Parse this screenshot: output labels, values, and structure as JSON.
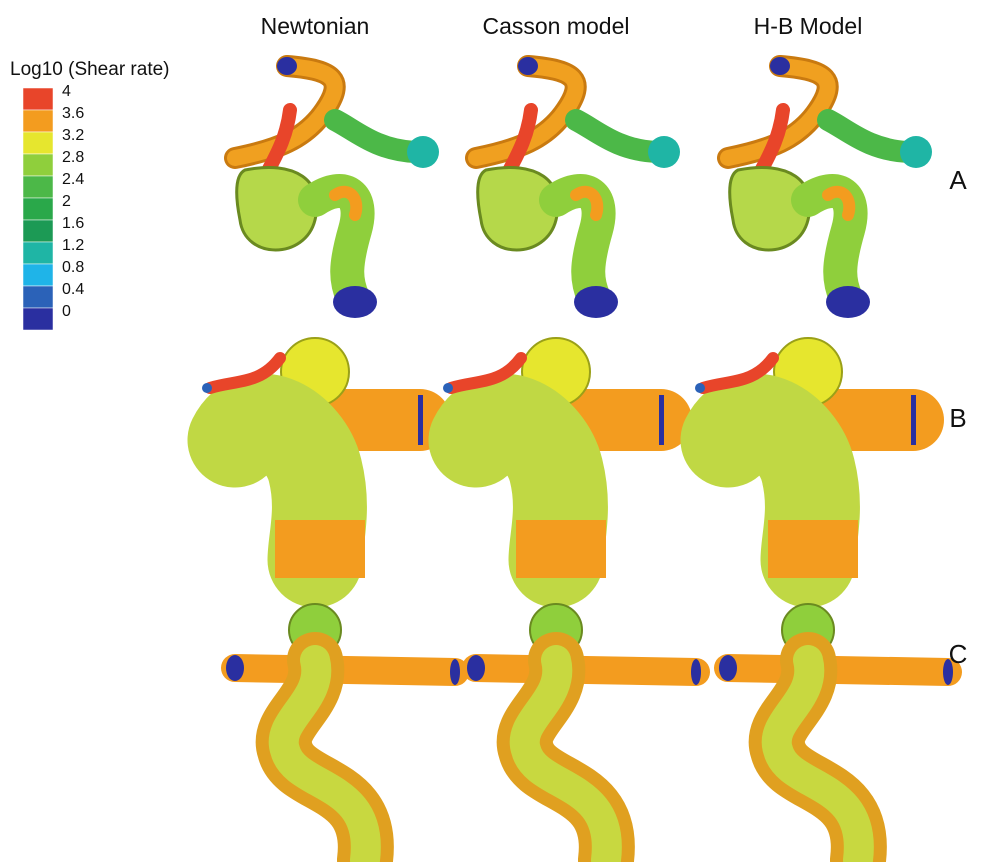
{
  "legend": {
    "title": "Log10 (Shear rate)",
    "entries": [
      {
        "label": "4",
        "color": "#e8452a"
      },
      {
        "label": "3.6",
        "color": "#f39c1f"
      },
      {
        "label": "3.2",
        "color": "#e6e62e"
      },
      {
        "label": "2.8",
        "color": "#8fcf3c"
      },
      {
        "label": "2.4",
        "color": "#4cb848"
      },
      {
        "label": "2",
        "color": "#2aa84a"
      },
      {
        "label": "1.6",
        "color": "#1c9a55"
      },
      {
        "label": "1.2",
        "color": "#1fb5a5"
      },
      {
        "label": "0.8",
        "color": "#1fb4e8"
      },
      {
        "label": "0.4",
        "color": "#2b62b8"
      },
      {
        "label": "0",
        "color": "#2a2fa0"
      }
    ]
  },
  "columns": [
    "Newtonian",
    "Casson model",
    "H-B Model"
  ],
  "rows": [
    "A",
    "B",
    "C"
  ]
}
